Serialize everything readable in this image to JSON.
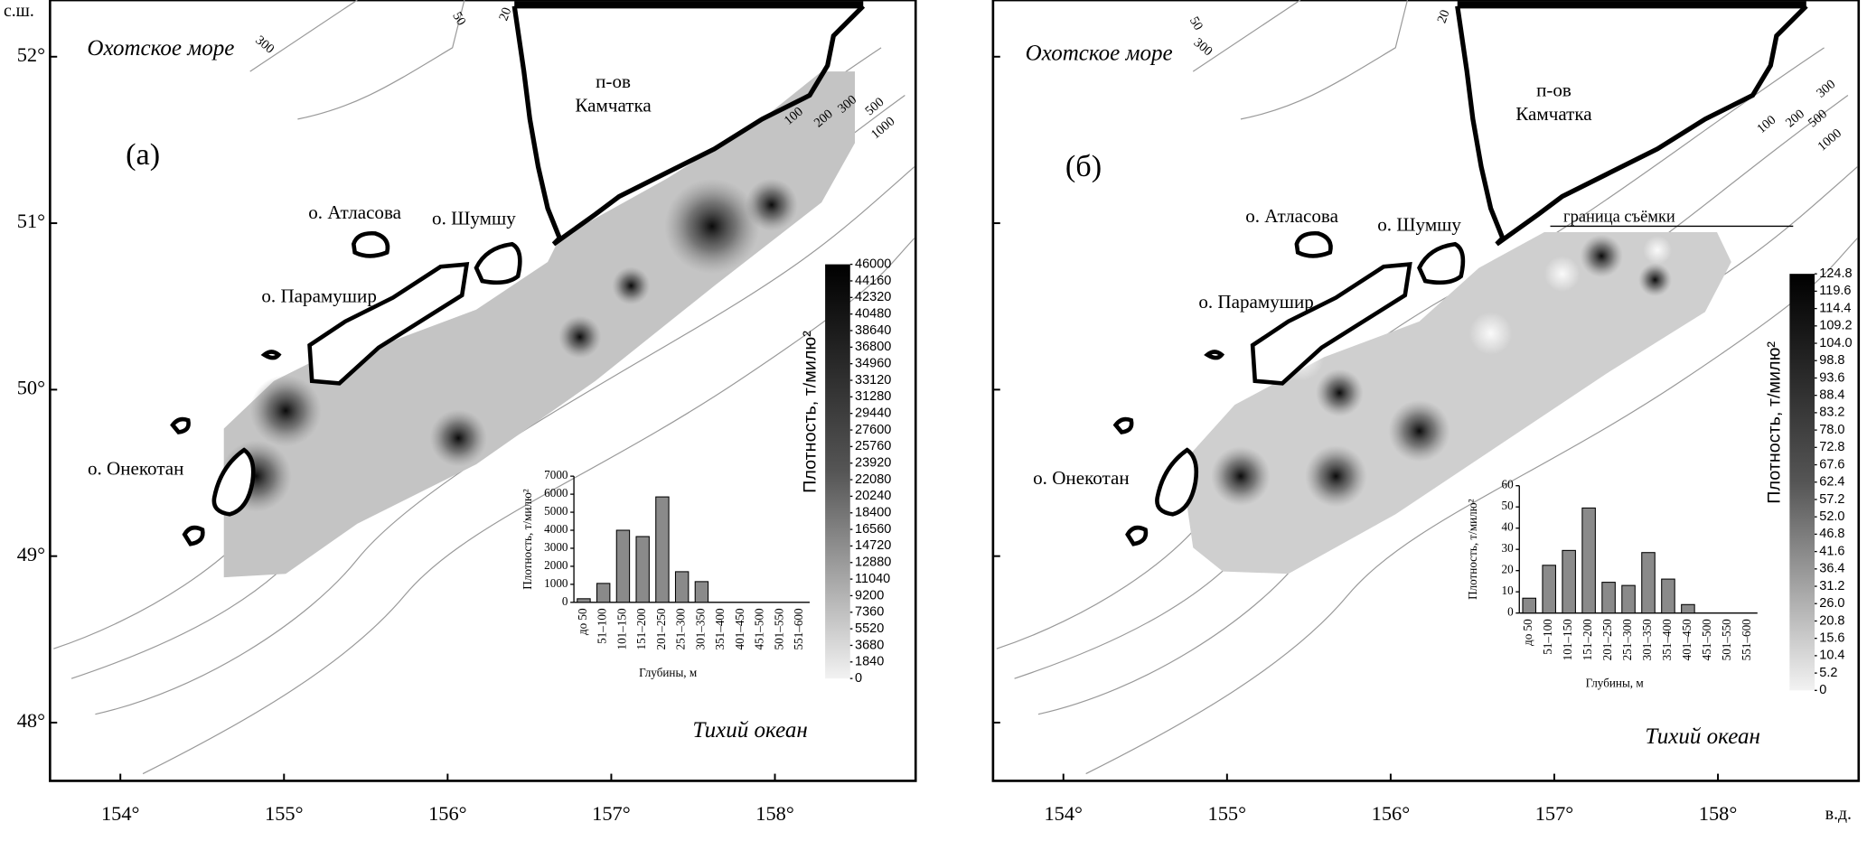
{
  "lat_label": "с.ш.",
  "lon_label": "в.д.",
  "lat_lim": [
    47.65,
    52.34
  ],
  "lon_lim": [
    153.57,
    158.86
  ],
  "lat_ticks": [
    {
      "value": 52,
      "label": "52°"
    },
    {
      "value": 51,
      "label": "51°"
    },
    {
      "value": 50,
      "label": "50°"
    },
    {
      "value": 49,
      "label": "49°"
    },
    {
      "value": 48,
      "label": "48°"
    }
  ],
  "lon_ticks": [
    {
      "value": 154,
      "label": "154°"
    },
    {
      "value": 155,
      "label": "155°"
    },
    {
      "value": 156,
      "label": "156°"
    },
    {
      "value": 157,
      "label": "157°"
    },
    {
      "value": 158,
      "label": "158°"
    }
  ],
  "panels": [
    {
      "panel_label": "(а)",
      "sea_label": "Охотское море",
      "ocean_label": "Тихий океан",
      "peninsula_label": [
        "п-ов",
        "Камчатка"
      ],
      "islands": [
        "о. Атласова",
        "о. Шумшу",
        "о. Парамушир",
        "о. Онекотан"
      ],
      "depth_labels": [
        "50",
        "20",
        "300",
        "100",
        "200",
        "300",
        "500",
        "1000"
      ],
      "colorbar": {
        "label": "Плотность, т/милю²",
        "ticks": [
          46000,
          44160,
          42320,
          40480,
          38640,
          36800,
          34960,
          33120,
          31280,
          29440,
          27600,
          25760,
          23920,
          22080,
          20240,
          18400,
          16560,
          14720,
          12880,
          11040,
          9200,
          7360,
          5520,
          3680,
          1840,
          0
        ]
      },
      "inset": {
        "type": "bar",
        "ylabel": "Плотность, т/милю²",
        "xlabel": "Глубины, м",
        "categories": [
          "до 50",
          "51–100",
          "101–150",
          "151–200",
          "201–250",
          "251–300",
          "301–350",
          "351–400",
          "401–450",
          "451–500",
          "501–550",
          "551–600"
        ],
        "values": [
          200,
          1050,
          4000,
          3650,
          5850,
          1700,
          1150,
          0,
          0,
          0,
          0,
          0
        ],
        "ylim": [
          0,
          7000
        ],
        "yticks": [
          0,
          1000,
          2000,
          3000,
          4000,
          5000,
          6000,
          7000
        ]
      }
    },
    {
      "panel_label": "(б)",
      "sea_label": "Охотское море",
      "ocean_label": "Тихий океан",
      "peninsula_label": [
        "п-ов",
        "Камчатка"
      ],
      "islands": [
        "о. Атласова",
        "о. Шумшу",
        "о. Парамушир",
        "о. Онекотан"
      ],
      "depth_labels": [
        "50",
        "20",
        "300",
        "100",
        "200",
        "300",
        "500",
        "1000"
      ],
      "survey_boundary_label": "граница съёмки",
      "colorbar": {
        "label": "Плотность, т/милю²",
        "ticks": [
          124.8,
          119.6,
          114.4,
          109.2,
          {
            "value": 104,
            "label": "104.0"
          },
          98.8,
          93.6,
          88.4,
          83.2,
          {
            "value": 78,
            "label": "78.0"
          },
          72.8,
          67.6,
          62.4,
          57.2,
          {
            "value": 52,
            "label": "52.0"
          },
          46.8,
          41.6,
          36.4,
          31.2,
          {
            "value": 26,
            "label": "26.0"
          },
          20.8,
          15.6,
          10.4,
          5.2,
          0
        ]
      },
      "inset": {
        "type": "bar",
        "ylabel": "Плотность, т/милю²",
        "xlabel": "Глубины, м",
        "categories": [
          "до 50",
          "51–100",
          "101–150",
          "151–200",
          "201–250",
          "251–300",
          "301–350",
          "351–400",
          "401–450",
          "451–500",
          "501–550",
          "551–600"
        ],
        "values": [
          7,
          22.5,
          29.5,
          49.5,
          14.5,
          13,
          28.5,
          16,
          4,
          0,
          0,
          0
        ],
        "ylim": [
          0,
          60
        ],
        "yticks": [
          0,
          10,
          20,
          30,
          40,
          50,
          60
        ]
      }
    }
  ]
}
